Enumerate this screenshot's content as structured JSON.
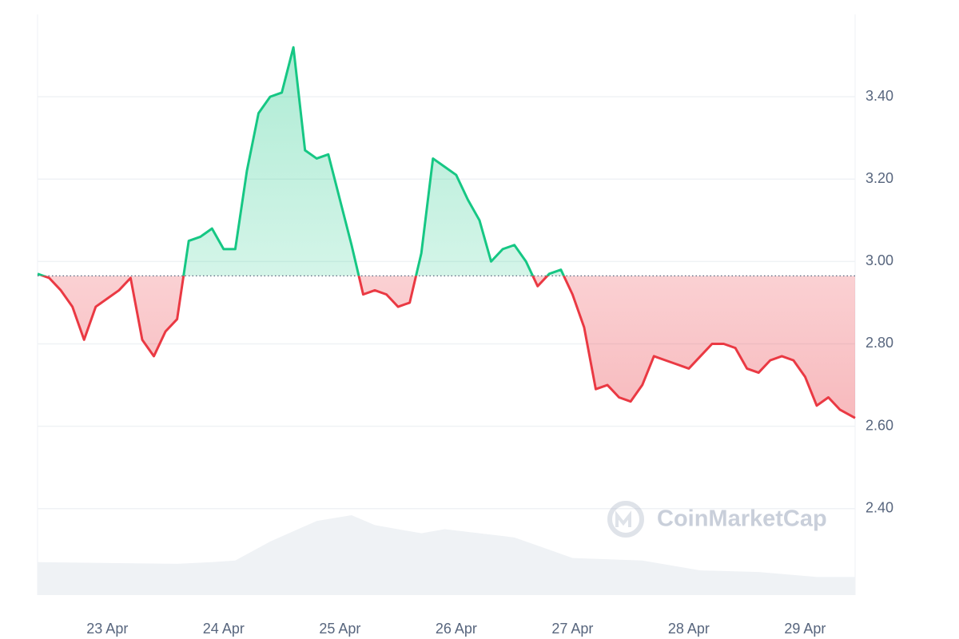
{
  "chart_data": {
    "type": "line",
    "x": [
      22.4,
      22.5,
      22.6,
      22.7,
      22.8,
      22.9,
      23.0,
      23.1,
      23.2,
      23.3,
      23.4,
      23.5,
      23.6,
      23.7,
      23.8,
      23.9,
      24.0,
      24.1,
      24.2,
      24.3,
      24.4,
      24.5,
      24.6,
      24.7,
      24.8,
      24.9,
      25.0,
      25.1,
      25.2,
      25.3,
      25.4,
      25.5,
      25.6,
      25.7,
      25.8,
      25.9,
      26.0,
      26.1,
      26.2,
      26.3,
      26.4,
      26.5,
      26.6,
      26.7,
      26.8,
      26.9,
      27.0,
      27.1,
      27.2,
      27.3,
      27.4,
      27.5,
      27.6,
      27.7,
      27.8,
      27.9,
      28.0,
      28.1,
      28.2,
      28.3,
      28.4,
      28.5,
      28.6,
      28.7,
      28.8,
      28.9,
      29.0,
      29.1,
      29.2,
      29.3,
      29.43
    ],
    "series": [
      {
        "name": "Price",
        "values": [
          2.97,
          2.96,
          2.93,
          2.89,
          2.81,
          2.89,
          2.91,
          2.93,
          2.96,
          2.81,
          2.77,
          2.83,
          2.86,
          3.05,
          3.06,
          3.08,
          3.03,
          3.03,
          3.22,
          3.36,
          3.4,
          3.41,
          3.52,
          3.27,
          3.25,
          3.26,
          3.15,
          3.04,
          2.92,
          2.93,
          2.92,
          2.89,
          2.9,
          3.02,
          3.25,
          3.23,
          3.21,
          3.15,
          3.1,
          3.0,
          3.03,
          3.04,
          3.0,
          2.94,
          2.97,
          2.98,
          2.92,
          2.84,
          2.69,
          2.7,
          2.67,
          2.66,
          2.7,
          2.77,
          2.76,
          2.75,
          2.74,
          2.77,
          2.8,
          2.8,
          2.79,
          2.74,
          2.73,
          2.76,
          2.77,
          2.76,
          2.72,
          2.65,
          2.67,
          2.64,
          2.62
        ]
      }
    ],
    "baseline": 2.965,
    "up_color": "#16c784",
    "down_color": "#ea3943",
    "volume": {
      "x": [
        22.4,
        23.6,
        23.9,
        24.1,
        24.4,
        24.8,
        25.1,
        25.3,
        25.7,
        25.9,
        26.5,
        26.8,
        27.0,
        27.6,
        28.1,
        28.6,
        29.1,
        29.43
      ],
      "values": [
        40,
        38,
        40,
        42,
        65,
        90,
        97,
        85,
        75,
        80,
        70,
        55,
        45,
        42,
        30,
        28,
        22,
        22
      ],
      "color": "#eff2f5"
    },
    "xlim": [
      22.4,
      29.43
    ],
    "xticks": [
      {
        "value": 23,
        "label": "23 Apr"
      },
      {
        "value": 24,
        "label": "24 Apr"
      },
      {
        "value": 25,
        "label": "25 Apr"
      },
      {
        "value": 26,
        "label": "26 Apr"
      },
      {
        "value": 27,
        "label": "27 Apr"
      },
      {
        "value": 28,
        "label": "28 Apr"
      },
      {
        "value": 29,
        "label": "29 Apr"
      }
    ],
    "ylim": [
      2.19,
      3.6
    ],
    "yticks": [
      {
        "value": 2.4,
        "label": "2.40"
      },
      {
        "value": 2.6,
        "label": "2.60"
      },
      {
        "value": 2.8,
        "label": "2.80"
      },
      {
        "value": 3.0,
        "label": "3.00"
      },
      {
        "value": 3.2,
        "label": "3.20"
      },
      {
        "value": 3.4,
        "label": "3.40"
      }
    ],
    "grid": true,
    "watermark": "CoinMarketCap"
  }
}
